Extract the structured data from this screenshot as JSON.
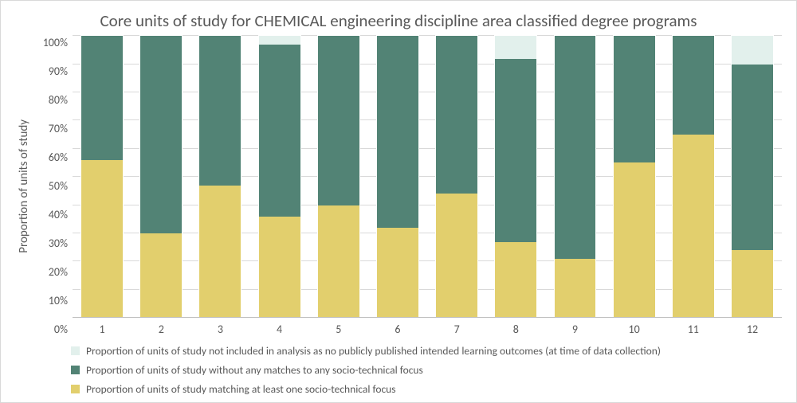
{
  "chart": {
    "type": "stacked-bar",
    "title": "Core units of study for CHEMICAL engineering discipline area classified degree programs",
    "title_fontsize": 21,
    "y_axis_title": "Proportion of units of study",
    "axis_label_fontsize": 15,
    "tick_fontsize": 14,
    "background_color": "#ffffff",
    "frame_border_color": "#d9d9d9",
    "grid_color": "#d9d9d9",
    "baseline_color": "#bfbfbf",
    "text_color": "#595959",
    "ylim": [
      0,
      100
    ],
    "ytick_step": 10,
    "yticks_pct": [
      "0%",
      "10%",
      "20%",
      "30%",
      "40%",
      "50%",
      "60%",
      "70%",
      "80%",
      "90%",
      "100%"
    ],
    "categories": [
      "1",
      "2",
      "3",
      "4",
      "5",
      "6",
      "7",
      "8",
      "9",
      "10",
      "11",
      "12"
    ],
    "bar_width": 0.7,
    "series": [
      {
        "key": "matching",
        "label": "Proportion of units of study matching at least one socio-technical focus",
        "color": "#e2cf6d"
      },
      {
        "key": "without_match",
        "label": "Proportion of units of study without any matches to any socio-technical focus",
        "color": "#528375"
      },
      {
        "key": "not_included",
        "label": "Proportion of units of study not included in analysis as no publicly published intended learning outcomes (at time of data collection)",
        "color": "#e2f0ec"
      }
    ],
    "legend_order": [
      "not_included",
      "without_match",
      "matching"
    ],
    "stack_order_bottom_to_top": [
      "matching",
      "without_match",
      "not_included"
    ],
    "data_pct": [
      {
        "matching": 56,
        "without_match": 44,
        "not_included": 0
      },
      {
        "matching": 30,
        "without_match": 70,
        "not_included": 0
      },
      {
        "matching": 47,
        "without_match": 53,
        "not_included": 0
      },
      {
        "matching": 36,
        "without_match": 61,
        "not_included": 3
      },
      {
        "matching": 40,
        "without_match": 60,
        "not_included": 0
      },
      {
        "matching": 32,
        "without_match": 68,
        "not_included": 0
      },
      {
        "matching": 44,
        "without_match": 56,
        "not_included": 0
      },
      {
        "matching": 27,
        "without_match": 65,
        "not_included": 8
      },
      {
        "matching": 21,
        "without_match": 79,
        "not_included": 0
      },
      {
        "matching": 55,
        "without_match": 45,
        "not_included": 0
      },
      {
        "matching": 65,
        "without_match": 35,
        "not_included": 0
      },
      {
        "matching": 24,
        "without_match": 66,
        "not_included": 10
      }
    ]
  }
}
